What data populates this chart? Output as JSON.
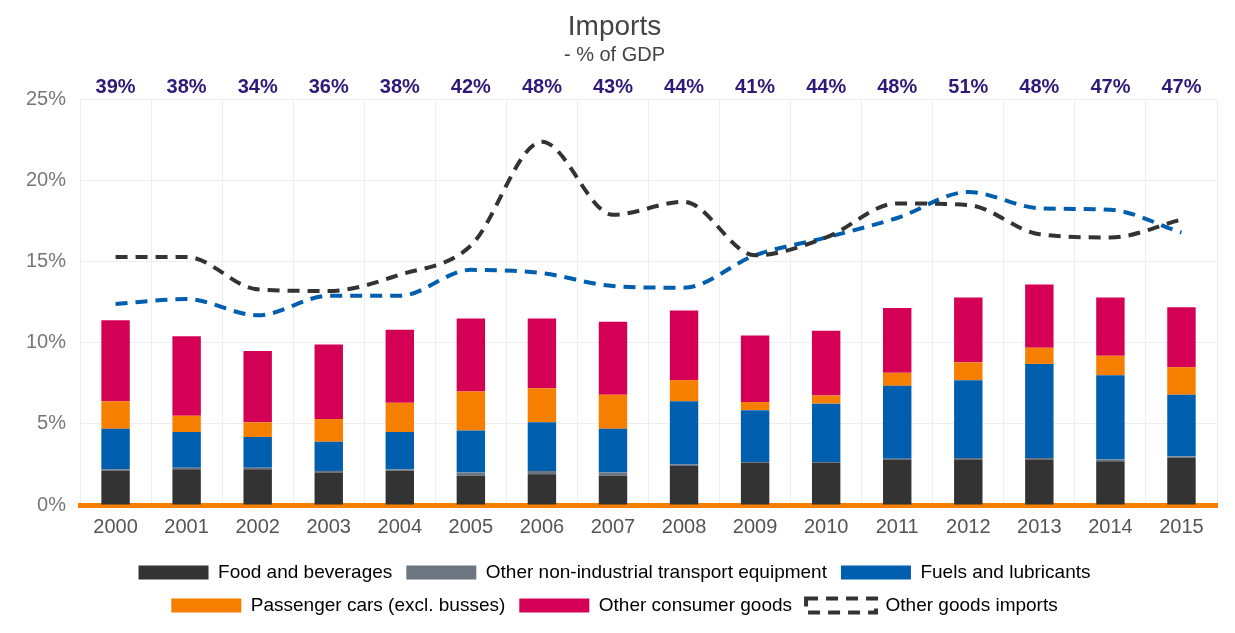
{
  "chart_data": {
    "type": "bar",
    "title": "Imports",
    "subtitle": "- % of GDP",
    "stacked": true,
    "categories": [
      "2000",
      "2001",
      "2002",
      "2003",
      "2004",
      "2005",
      "2006",
      "2007",
      "2008",
      "2009",
      "2010",
      "2011",
      "2012",
      "2013",
      "2014",
      "2015"
    ],
    "series": [
      {
        "name": "Food and beverages",
        "color": "#333333",
        "values": [
          2.1,
          2.2,
          2.2,
          2.0,
          2.1,
          1.8,
          1.9,
          1.8,
          2.4,
          2.6,
          2.6,
          2.8,
          2.8,
          2.8,
          2.7,
          2.9
        ]
      },
      {
        "name": "Other non-industrial transport equipment",
        "color": "#6d7680",
        "values": [
          0.1,
          0.1,
          0.1,
          0.1,
          0.1,
          0.2,
          0.2,
          0.2,
          0.1,
          0.05,
          0.05,
          0.05,
          0.1,
          0.1,
          0.1,
          0.1
        ]
      },
      {
        "name": "Fuels and lubricants",
        "color": "#005eae",
        "values": [
          2.5,
          2.2,
          1.9,
          1.8,
          2.3,
          2.6,
          3.0,
          2.7,
          3.9,
          3.2,
          3.6,
          4.5,
          4.8,
          5.8,
          5.2,
          3.8
        ]
      },
      {
        "name": "Passenger cars (excl. busses)",
        "color": "#f77f00",
        "values": [
          1.7,
          1.0,
          0.9,
          1.4,
          1.8,
          2.4,
          2.1,
          2.1,
          1.3,
          0.5,
          0.5,
          0.8,
          1.1,
          1.0,
          1.2,
          1.7
        ]
      },
      {
        "name": "Other consumer goods",
        "color": "#d40055",
        "values": [
          5.0,
          4.9,
          4.4,
          4.6,
          4.5,
          4.5,
          4.3,
          4.5,
          4.3,
          4.1,
          4.0,
          4.0,
          4.0,
          3.9,
          3.6,
          3.7
        ]
      },
      {
        "name": "Other goods imports",
        "type": "line",
        "line_style": "dashed",
        "color": "#333333",
        "values": [
          15.3,
          15.3,
          13.3,
          13.2,
          14.2,
          16.0,
          22.4,
          17.9,
          18.7,
          15.4,
          16.5,
          18.6,
          18.5,
          16.7,
          16.5,
          17.6
        ]
      },
      {
        "type": "line",
        "line_style": "dashed",
        "color": "#005eae",
        "values": [
          12.4,
          12.7,
          11.7,
          12.9,
          12.9,
          14.5,
          14.3,
          13.5,
          13.4,
          15.4,
          16.5,
          17.7,
          19.3,
          18.3,
          18.2,
          16.8
        ]
      }
    ],
    "ylim": [
      0,
      25
    ],
    "yticks": [
      {
        "value": 0,
        "label": "0%"
      },
      {
        "value": 5,
        "label": "5%"
      },
      {
        "value": 10,
        "label": "10%"
      },
      {
        "value": 15,
        "label": "15%"
      },
      {
        "value": 20,
        "label": "20%"
      },
      {
        "value": 25,
        "label": "25%"
      }
    ],
    "annotations": [
      "39%",
      "38%",
      "34%",
      "36%",
      "38%",
      "42%",
      "48%",
      "43%",
      "44%",
      "41%",
      "44%",
      "48%",
      "51%",
      "48%",
      "47%",
      "47%"
    ],
    "grid": true,
    "legend": "bottom",
    "marker": "none"
  }
}
